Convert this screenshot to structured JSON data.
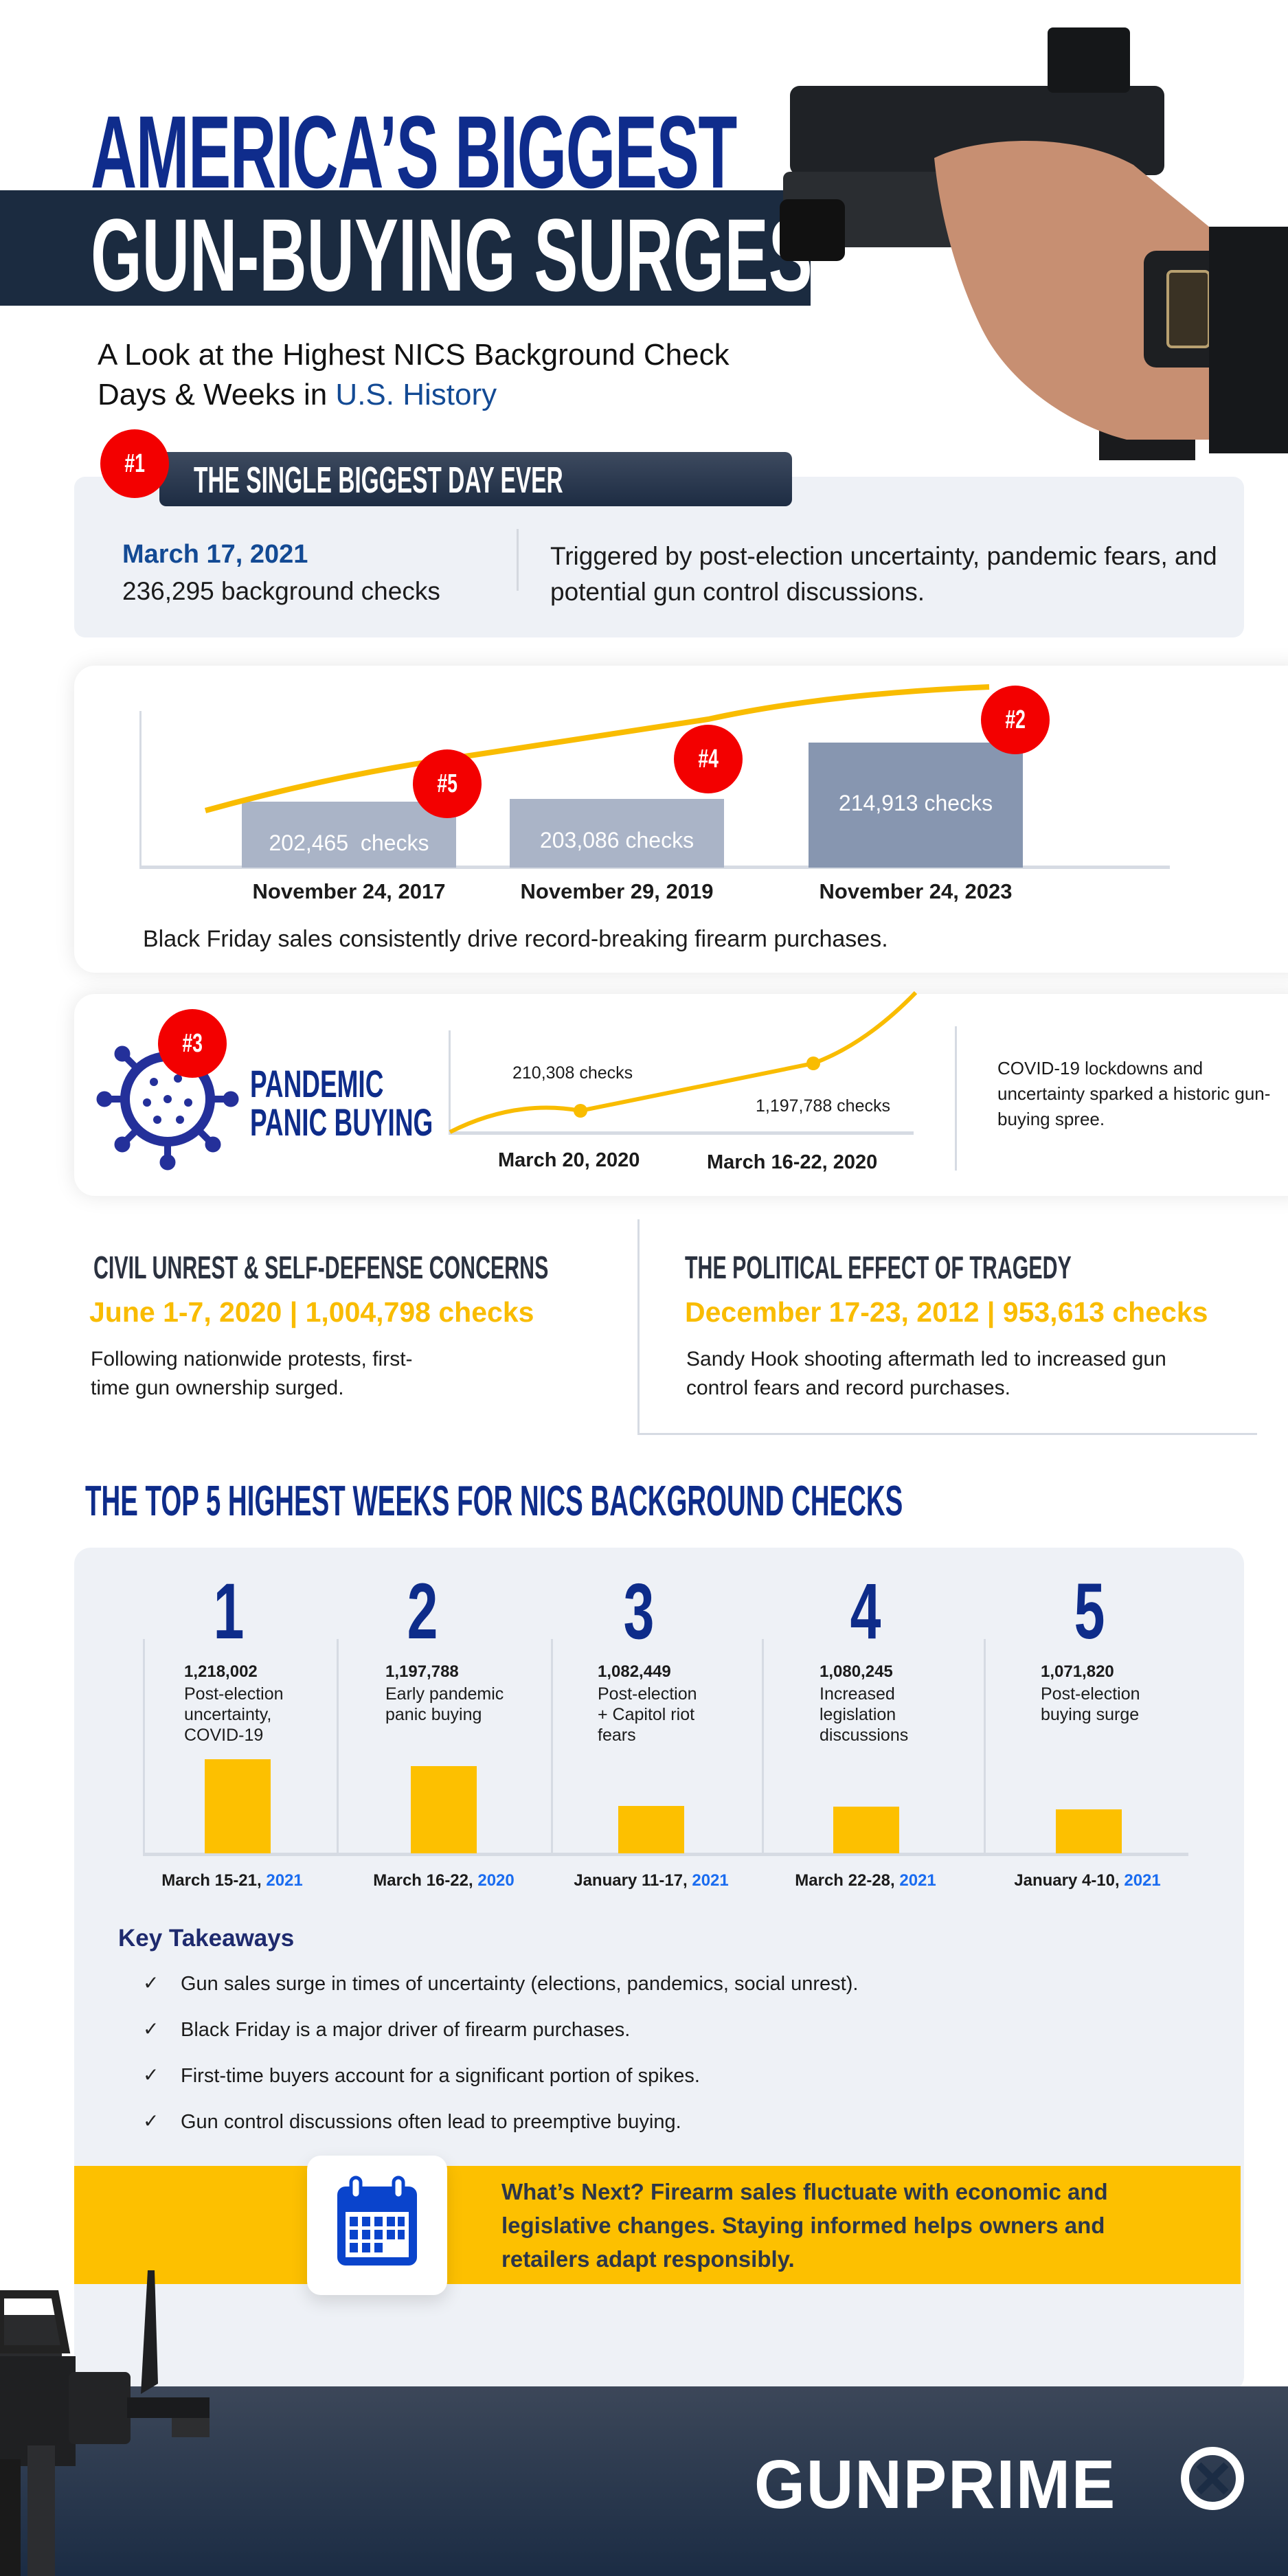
{
  "header": {
    "title_line1": "AMERICA’S BIGGEST",
    "title_line2": "GUN-BUYING SURGES",
    "subtitle_line1": "A Look at the Highest NICS Background Check",
    "subtitle_line2_prefix": "Days & Weeks in ",
    "subtitle_line2_highlight": "U.S. History"
  },
  "biggest_day": {
    "badge": "#1",
    "heading": "THE SINGLE BIGGEST DAY EVER",
    "date": "March 17, 2021",
    "checks": "236,295 background checks",
    "description": "Triggered by post-election uncertainty, pandemic fears, and potential gun control discussions."
  },
  "black_friday": {
    "caption": "Black Friday sales consistently drive record-breaking firearm purchases.",
    "bars": [
      {
        "badge": "#5",
        "label": "202,465  checks",
        "date": "November 24, 2017",
        "value": 202465
      },
      {
        "badge": "#4",
        "label": "203,086 checks",
        "date": "November 29, 2019",
        "value": 203086
      },
      {
        "badge": "#2",
        "label": "214,913 checks",
        "date": "November 24, 2023",
        "value": 214913
      }
    ]
  },
  "pandemic": {
    "badge": "#3",
    "title_line1": "PANDEMIC",
    "title_line2": "PANIC BUYING",
    "point1_label": "210,308 checks",
    "point1_date": "March 20, 2020",
    "point2_label": "1,197,788 checks",
    "point2_date": "March 16-22, 2020",
    "description": "COVID-19 lockdowns and uncertainty sparked a historic gun-buying spree."
  },
  "civil_unrest": {
    "heading": "CIVIL UNREST & SELF-DEFENSE CONCERNS",
    "stat": "June 1-7, 2020 | 1,004,798 checks",
    "description_line1": "Following nationwide protests, first-",
    "description_line2": "time gun ownership surged."
  },
  "tragedy": {
    "heading": "THE POLITICAL EFFECT OF TRAGEDY",
    "stat": "December 17-23, 2012 | 953,613 checks",
    "description_line1": "Sandy Hook shooting aftermath led to increased gun",
    "description_line2": "control fears and record purchases."
  },
  "top5": {
    "heading": "THE TOP 5 HIGHEST WEEKS FOR NICS BACKGROUND CHECKS",
    "weeks": [
      {
        "rank": "1",
        "value": "1,218,002",
        "n": 1218002,
        "desc": [
          "Post-election",
          "uncertainty,",
          "COVID-19"
        ],
        "dates": "March 15-21, ",
        "year": "2021"
      },
      {
        "rank": "2",
        "value": "1,197,788",
        "n": 1197788,
        "desc": [
          "Early pandemic",
          "panic buying"
        ],
        "dates": "March 16-22, ",
        "year": "2020"
      },
      {
        "rank": "3",
        "value": "1,082,449",
        "n": 1082449,
        "desc": [
          "Post-election",
          "+ Capitol riot",
          "fears"
        ],
        "dates": "January 11-17, ",
        "year": "2021"
      },
      {
        "rank": "4",
        "value": "1,080,245",
        "n": 1080245,
        "desc": [
          "Increased",
          "legislation",
          "discussions"
        ],
        "dates": "March 22-28, ",
        "year": "2021"
      },
      {
        "rank": "5",
        "value": "1,071,820",
        "n": 1071820,
        "desc": [
          "Post-election",
          "buying surge"
        ],
        "dates": "January 4-10, ",
        "year": "2021"
      }
    ]
  },
  "takeaways": {
    "heading": "Key Takeaways",
    "check_icon": "checkmark-icon",
    "items": [
      "Gun sales surge in times of uncertainty (elections, pandemics, social unrest).",
      "Black Friday is a major driver of firearm purchases.",
      "First-time buyers account for a significant portion of spikes.",
      "Gun control discussions often lead to preemptive buying."
    ]
  },
  "whats_next": {
    "icon": "calendar-icon",
    "line1": "What’s Next? Firearm sales fluctuate with economic and",
    "line2": "legislative changes. Staying informed helps owners and",
    "line3": "retailers adapt responsibly."
  },
  "footer": {
    "logo": "GUNPRIME"
  },
  "colors": {
    "navy": "#0e2c8a",
    "dark_band": "#1b2b40",
    "red_badge": "#f30000",
    "yellow": "#f9bc00",
    "panel_gray": "#eef1f6",
    "bar_slate": "#aab4c7",
    "bar_dark_slate": "#8796b0",
    "link_blue": "#1a6cf0"
  }
}
